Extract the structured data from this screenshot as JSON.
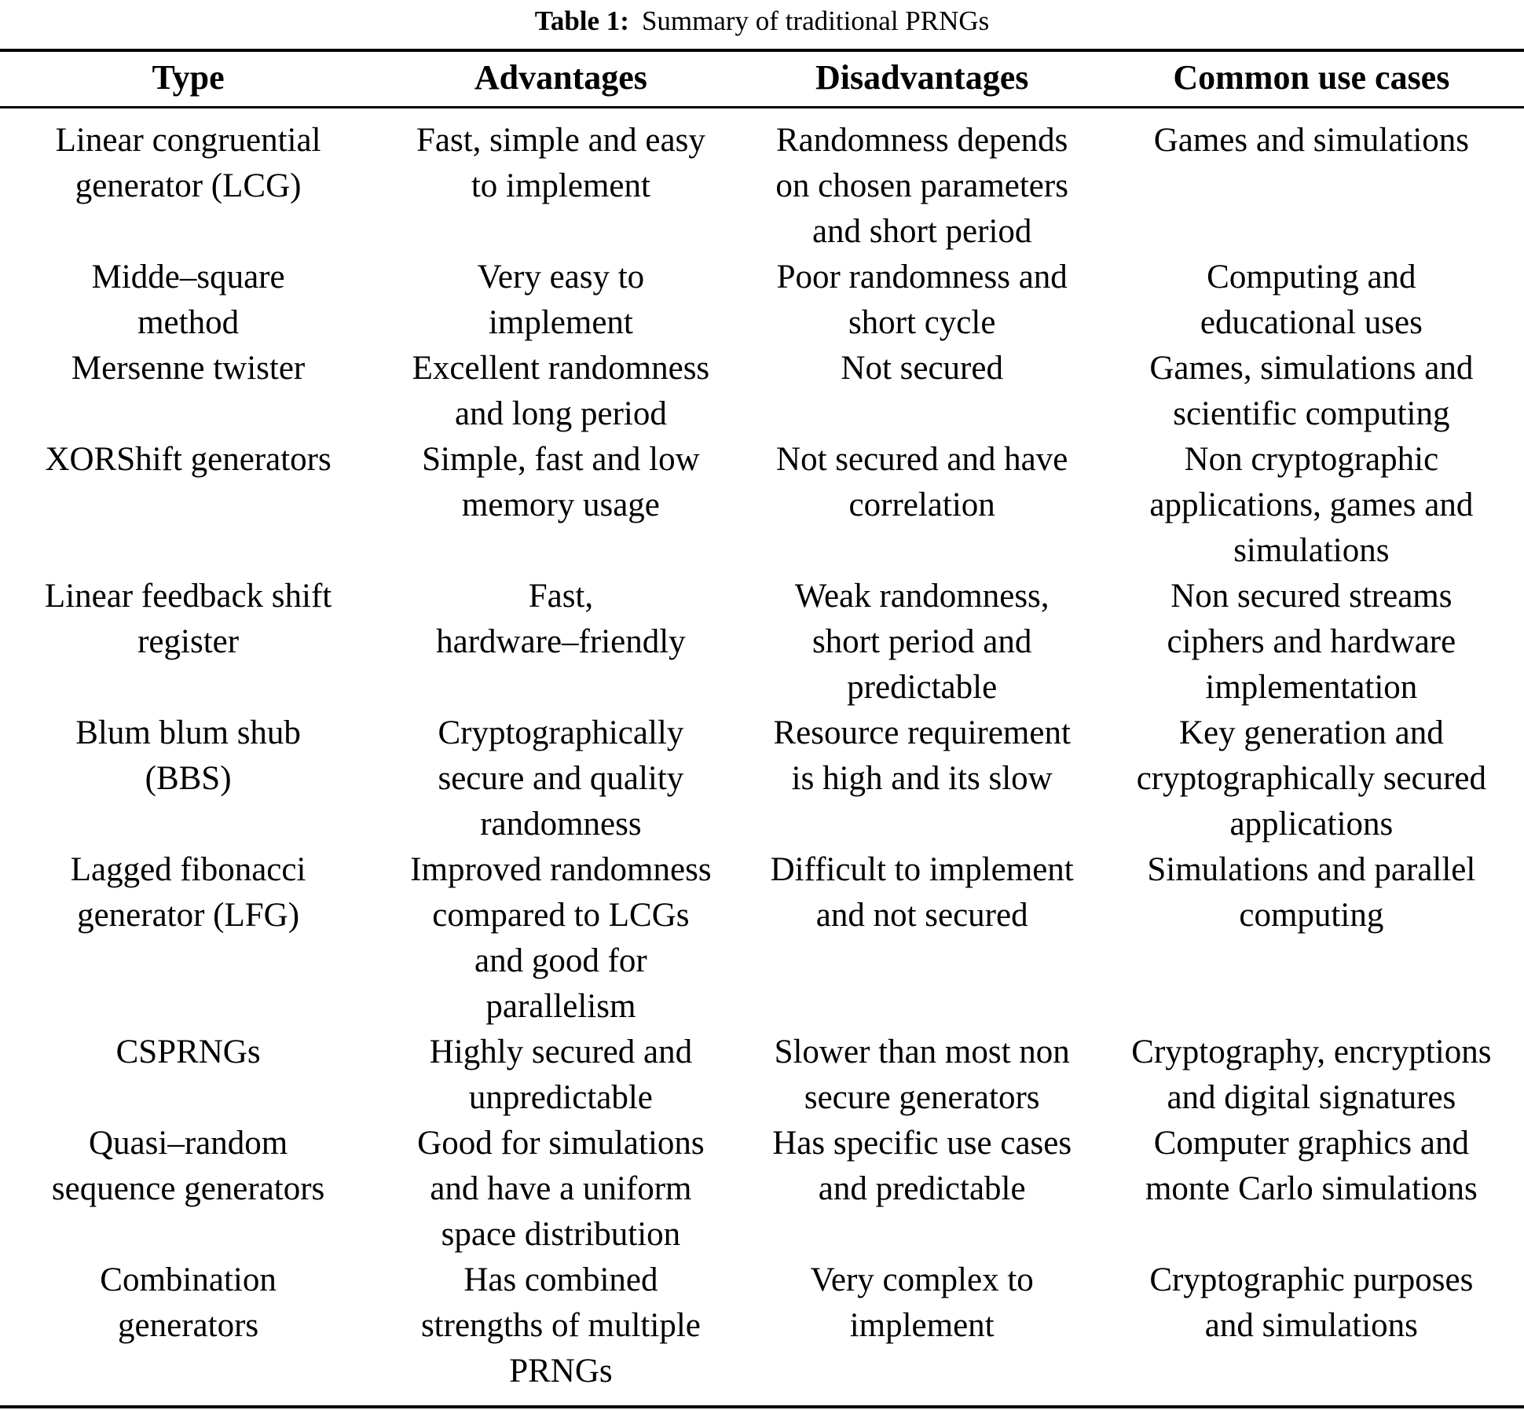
{
  "caption": {
    "label": "Table 1:",
    "text": "Summary of traditional PRNGs"
  },
  "table": {
    "headers": [
      "Type",
      "Advantages",
      "Disadvantages",
      "Common use cases"
    ],
    "rows": [
      {
        "cells": [
          "Linear congruential\ngenerator (LCG)",
          "Fast, simple and easy\nto implement",
          "Randomness depends\non chosen parameters\nand short period",
          "Games and simulations"
        ]
      },
      {
        "cells": [
          "Midde–square\nmethod",
          "Very easy to\nimplement",
          "Poor randomness and\nshort cycle",
          "Computing and\neducational uses"
        ]
      },
      {
        "cells": [
          "Mersenne twister",
          "Excellent randomness\nand long period",
          "Not secured",
          "Games, simulations and\nscientific computing"
        ]
      },
      {
        "cells": [
          "XORShift generators",
          "Simple, fast and low\nmemory usage",
          "Not secured and have\ncorrelation",
          "Non cryptographic\napplications, games and\nsimulations"
        ]
      },
      {
        "cells": [
          "Linear feedback shift\nregister",
          "Fast,\nhardware–friendly",
          "Weak randomness,\nshort period and\npredictable",
          "Non secured streams\nciphers and hardware\nimplementation"
        ]
      },
      {
        "cells": [
          "Blum blum shub\n(BBS)",
          "Cryptographically\nsecure and quality\nrandomness",
          "Resource requirement\nis high and its slow",
          "Key generation and\ncryptographically secured\napplications"
        ]
      },
      {
        "cells": [
          "Lagged fibonacci\ngenerator (LFG)",
          "Improved randomness\ncompared to LCGs\nand good for\nparallelism",
          "Difficult to implement\nand not secured",
          "Simulations and parallel\ncomputing"
        ]
      },
      {
        "cells": [
          "CSPRNGs",
          "Highly secured and\nunpredictable",
          "Slower than most non\nsecure generators",
          "Cryptography, encryptions\nand digital signatures"
        ]
      },
      {
        "cells": [
          "Quasi–random\nsequence generators",
          "Good for simulations\nand have a uniform\nspace distribution",
          "Has specific use cases\nand predictable",
          "Computer graphics and\nmonte Carlo simulations"
        ]
      },
      {
        "cells": [
          "Combination\ngenerators",
          "Has combined\nstrengths of multiple\nPRNGs",
          "Very complex to\nimplement",
          "Cryptographic purposes\nand simulations"
        ]
      }
    ]
  }
}
